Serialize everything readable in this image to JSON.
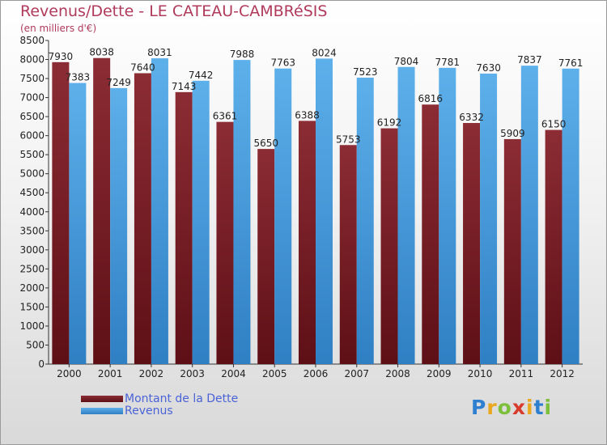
{
  "title": "Revenus/Dette - LE CATEAU-CAMBRéSIS",
  "subtitle": "(en milliers d'€)",
  "logo_text": "Proxiti",
  "colors": {
    "title": "#b03a5b",
    "dette": "#7a1f27",
    "revenus": "#4a9fe0",
    "legend_text": "#4a63d6"
  },
  "legend": [
    {
      "label": "Montant de la Dette",
      "color_key": "dette"
    },
    {
      "label": "Revenus",
      "color_key": "revenus"
    }
  ],
  "chart_data": {
    "type": "bar",
    "categories": [
      "2000",
      "2001",
      "2002",
      "2003",
      "2004",
      "2005",
      "2006",
      "2007",
      "2008",
      "2009",
      "2010",
      "2011",
      "2012"
    ],
    "series": [
      {
        "name": "Montant de la Dette",
        "values": [
          7930,
          8038,
          7640,
          7143,
          6361,
          5650,
          6388,
          5753,
          6192,
          6816,
          6332,
          5909,
          6150
        ]
      },
      {
        "name": "Revenus",
        "values": [
          7383,
          7249,
          8031,
          7442,
          7988,
          7763,
          8024,
          7523,
          7804,
          7781,
          7630,
          7837,
          7761
        ]
      }
    ],
    "ylim": [
      0,
      8500
    ],
    "ytick_step": 500,
    "grid": false,
    "legend_position": "bottom-left"
  }
}
